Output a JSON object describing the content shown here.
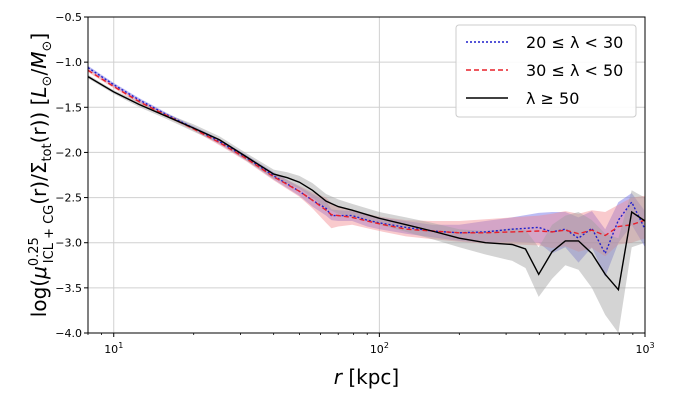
{
  "chart_data": {
    "type": "line",
    "xscale": "log",
    "xlim": [
      8,
      1000
    ],
    "ylim": [
      -4.0,
      -0.5
    ],
    "grid": true,
    "legend_position": "top-right",
    "xlabel_italic": "r",
    "xlabel_rest": " [kpc]",
    "ylabel": "log(μ^0.25_ICL+CG(r)/Σ_tot(r)) [L_⊙/M_⊙]",
    "ylabel_parts": {
      "pre": "log(",
      "mu": "μ",
      "mu_sup": "0.25",
      "mu_sub": "ICL + CG",
      "mid": "(r)/Σ",
      "sigma_sub": "tot",
      "post": "(r)) [",
      "L": "L",
      "Lsub": "⊙",
      "slash": "/",
      "M": "M",
      "Msub": "⊙",
      "close": "]"
    },
    "x_ticks": [
      {
        "value": 10,
        "base": "10",
        "exp": "1"
      },
      {
        "value": 100,
        "base": "10",
        "exp": "2"
      },
      {
        "value": 1000,
        "base": "10",
        "exp": "3"
      }
    ],
    "y_ticks": [
      -0.5,
      -1.0,
      -1.5,
      -2.0,
      -2.5,
      -3.0,
      -3.5,
      -4.0
    ],
    "y_tick_labels": [
      "−0.5",
      "−1.0",
      "−1.5",
      "−2.0",
      "−2.5",
      "−3.0",
      "−3.5",
      "−4.0"
    ],
    "series": [
      {
        "name": "20 ≤ λ < 30",
        "legend_text": "20 ≤ λ < 30",
        "color": "#1f1fcc",
        "band_color": "#6a6ae6",
        "dash": "2,2",
        "x": [
          8,
          10,
          12.5,
          15.8,
          20,
          25,
          31.6,
          40,
          50,
          56,
          63,
          66,
          70,
          79,
          90,
          100,
          126,
          158,
          200,
          251,
          316,
          398,
          447,
          501,
          562,
          631,
          708,
          794,
          891,
          1000
        ],
        "y": [
          -1.06,
          -1.25,
          -1.42,
          -1.58,
          -1.73,
          -1.88,
          -2.06,
          -2.26,
          -2.43,
          -2.53,
          -2.62,
          -2.7,
          -2.7,
          -2.7,
          -2.75,
          -2.78,
          -2.83,
          -2.87,
          -2.89,
          -2.88,
          -2.85,
          -2.83,
          -2.88,
          -2.85,
          -2.95,
          -2.84,
          -3.12,
          -2.75,
          -2.55,
          -2.85
        ],
        "y_lower": [
          -1.08,
          -1.27,
          -1.44,
          -1.6,
          -1.75,
          -1.91,
          -2.09,
          -2.3,
          -2.48,
          -2.6,
          -2.7,
          -2.75,
          -2.76,
          -2.76,
          -2.82,
          -2.85,
          -2.9,
          -2.94,
          -2.98,
          -3.0,
          -2.99,
          -3.0,
          -3.12,
          -3.05,
          -3.22,
          -3.05,
          -3.38,
          -3.0,
          -2.8,
          -3.05
        ],
        "y_upper": [
          -1.04,
          -1.23,
          -1.4,
          -1.56,
          -1.71,
          -1.85,
          -2.03,
          -2.22,
          -2.38,
          -2.46,
          -2.54,
          -2.63,
          -2.64,
          -2.65,
          -2.69,
          -2.72,
          -2.76,
          -2.8,
          -2.8,
          -2.76,
          -2.72,
          -2.67,
          -2.66,
          -2.66,
          -2.72,
          -2.65,
          -2.85,
          -2.55,
          -2.45,
          -2.65
        ]
      },
      {
        "name": "30 ≤ λ < 50",
        "legend_text": "30 ≤ λ < 50",
        "color": "#e8202a",
        "band_color": "#f28a90",
        "dash": "5,3",
        "x": [
          8,
          10,
          12.5,
          15.8,
          20,
          25,
          31.6,
          40,
          50,
          56,
          63,
          66,
          70,
          79,
          90,
          100,
          126,
          158,
          200,
          251,
          316,
          398,
          447,
          501,
          562,
          631,
          708,
          794,
          891,
          1000
        ],
        "y": [
          -1.09,
          -1.27,
          -1.44,
          -1.59,
          -1.74,
          -1.89,
          -2.07,
          -2.27,
          -2.43,
          -2.53,
          -2.64,
          -2.69,
          -2.7,
          -2.72,
          -2.76,
          -2.79,
          -2.85,
          -2.87,
          -2.89,
          -2.89,
          -2.88,
          -2.87,
          -2.88,
          -2.86,
          -2.9,
          -2.86,
          -2.92,
          -2.82,
          -2.8,
          -2.75
        ],
        "y_lower": [
          -1.11,
          -1.29,
          -1.46,
          -1.61,
          -1.76,
          -1.92,
          -2.1,
          -2.31,
          -2.49,
          -2.62,
          -2.78,
          -2.84,
          -2.82,
          -2.8,
          -2.84,
          -2.87,
          -2.93,
          -2.96,
          -2.99,
          -3.01,
          -3.02,
          -3.03,
          -3.06,
          -3.04,
          -3.1,
          -3.06,
          -3.15,
          -3.02,
          -3.0,
          -2.95
        ],
        "y_upper": [
          -1.07,
          -1.25,
          -1.42,
          -1.57,
          -1.72,
          -1.86,
          -2.04,
          -2.23,
          -2.37,
          -2.44,
          -2.5,
          -2.56,
          -2.6,
          -2.64,
          -2.68,
          -2.71,
          -2.75,
          -2.76,
          -2.76,
          -2.74,
          -2.72,
          -2.7,
          -2.68,
          -2.65,
          -2.68,
          -2.64,
          -2.66,
          -2.58,
          -2.5,
          -2.48
        ]
      },
      {
        "name": "λ ≥ 50",
        "legend_text": "λ ≥ 50",
        "color": "#000000",
        "band_color": "#a0a0a0",
        "dash": "",
        "x": [
          8,
          10,
          12.5,
          15.8,
          20,
          25,
          31.6,
          40,
          45,
          50,
          56,
          63,
          70,
          79,
          90,
          100,
          126,
          158,
          200,
          251,
          316,
          355,
          398,
          447,
          501,
          562,
          631,
          708,
          794,
          891,
          1000
        ],
        "y": [
          -1.16,
          -1.33,
          -1.47,
          -1.6,
          -1.73,
          -1.86,
          -2.05,
          -2.24,
          -2.28,
          -2.33,
          -2.42,
          -2.54,
          -2.6,
          -2.64,
          -2.69,
          -2.73,
          -2.8,
          -2.87,
          -2.95,
          -3.0,
          -3.02,
          -3.07,
          -3.35,
          -3.1,
          -2.98,
          -2.98,
          -3.12,
          -3.35,
          -3.52,
          -2.66,
          -2.76
        ],
        "y_lower": [
          -1.18,
          -1.35,
          -1.5,
          -1.63,
          -1.77,
          -1.9,
          -2.09,
          -2.29,
          -2.34,
          -2.4,
          -2.5,
          -2.62,
          -2.68,
          -2.71,
          -2.76,
          -2.8,
          -2.88,
          -2.96,
          -3.05,
          -3.13,
          -3.2,
          -3.28,
          -3.6,
          -3.4,
          -3.25,
          -3.3,
          -3.5,
          -3.8,
          -4.05,
          -3.05,
          -3.0
        ],
        "y_upper": [
          -1.14,
          -1.31,
          -1.44,
          -1.57,
          -1.69,
          -1.82,
          -2.01,
          -2.19,
          -2.22,
          -2.26,
          -2.34,
          -2.46,
          -2.52,
          -2.57,
          -2.62,
          -2.66,
          -2.72,
          -2.78,
          -2.85,
          -2.87,
          -2.84,
          -2.86,
          -3.05,
          -2.8,
          -2.7,
          -2.66,
          -2.75,
          -2.9,
          -2.95,
          -2.42,
          -2.5
        ]
      }
    ]
  }
}
